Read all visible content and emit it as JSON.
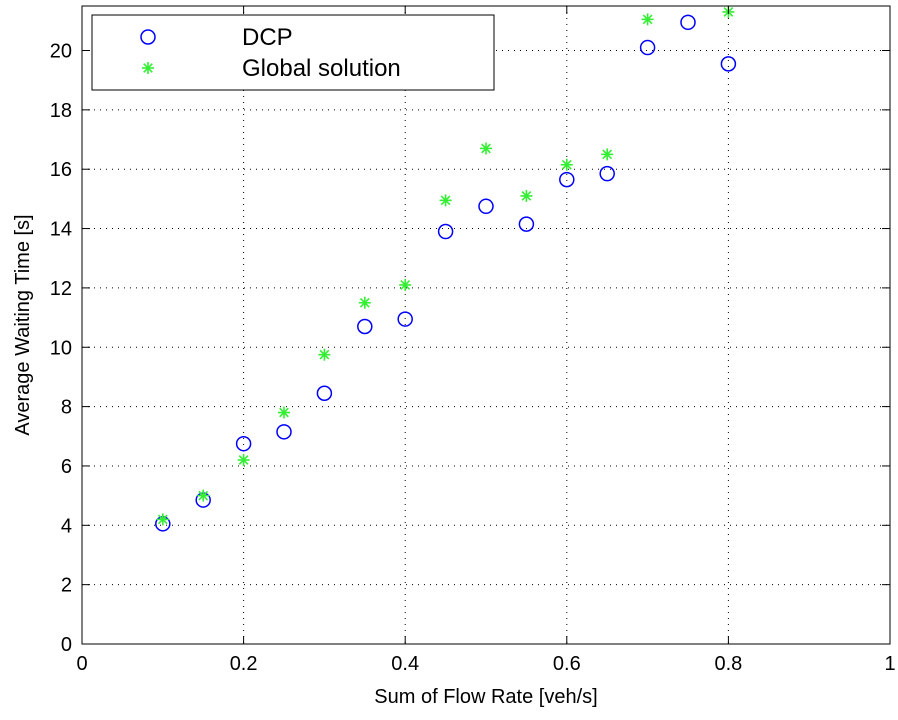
{
  "chart_data": {
    "type": "scatter",
    "xlabel": "Sum of Flow Rate [veh/s]",
    "ylabel": "Average Waiting Time [s]",
    "xlim": [
      0,
      1
    ],
    "ylim": [
      0,
      21.5
    ],
    "xticks": [
      0,
      0.2,
      0.4,
      0.6,
      0.8,
      1
    ],
    "xtick_labels": [
      "0",
      "0.2",
      "0.4",
      "0.6",
      "0.8",
      "1"
    ],
    "yticks": [
      0,
      2,
      4,
      6,
      8,
      10,
      12,
      14,
      16,
      18,
      20
    ],
    "ytick_labels": [
      "0",
      "2",
      "4",
      "6",
      "8",
      "10",
      "12",
      "14",
      "16",
      "18",
      "20"
    ],
    "grid": true,
    "grid_style": "dotted",
    "legend_position": "top-left",
    "series": [
      {
        "name": "DCP",
        "marker": "circle",
        "color": "#0000ff",
        "x": [
          0.1,
          0.15,
          0.2,
          0.25,
          0.3,
          0.35,
          0.4,
          0.45,
          0.5,
          0.55,
          0.6,
          0.65,
          0.7,
          0.75,
          0.8
        ],
        "y": [
          4.05,
          4.85,
          6.75,
          7.15,
          8.45,
          10.7,
          10.95,
          13.9,
          14.75,
          14.15,
          15.65,
          15.85,
          20.1,
          20.95,
          19.55
        ]
      },
      {
        "name": "Global solution",
        "marker": "asterisk",
        "color": "#33ee33",
        "x": [
          0.1,
          0.15,
          0.2,
          0.25,
          0.3,
          0.35,
          0.4,
          0.45,
          0.5,
          0.55,
          0.6,
          0.65,
          0.7,
          0.8
        ],
        "y": [
          4.2,
          5.0,
          6.2,
          7.8,
          9.75,
          11.5,
          12.1,
          14.95,
          16.7,
          15.1,
          16.15,
          16.5,
          21.05,
          21.3
        ]
      }
    ]
  }
}
